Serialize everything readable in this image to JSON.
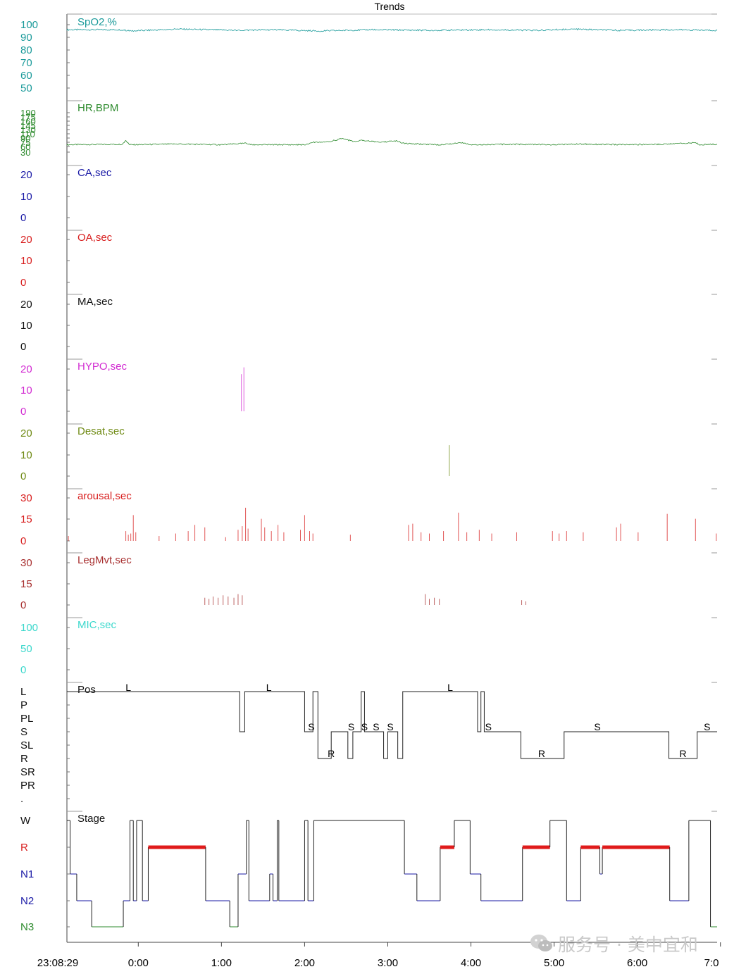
{
  "window": {
    "title": "Trends"
  },
  "watermark": {
    "text": "服务号 · 美中宜和"
  },
  "chart_data": {
    "type": "line",
    "title": "Trends",
    "x_axis": {
      "start_label": "23:08:29",
      "ticks": [
        "0:00",
        "1:00",
        "2:00",
        "3:00",
        "4:00",
        "5:00",
        "6:00",
        "7:0"
      ],
      "start_hours": -0.858,
      "end_hours": 6.96
    },
    "panels": [
      {
        "label": "SpO2,%",
        "color": "#1a9a9a",
        "ticks": [
          "100",
          "90",
          "80",
          "70",
          "60",
          "50"
        ],
        "ylim": [
          50,
          100
        ],
        "series": [
          [
            -0.86,
            96
          ],
          [
            -0.2,
            96
          ],
          [
            -0.1,
            95
          ],
          [
            0.5,
            96.5
          ],
          [
            1.2,
            95.5
          ],
          [
            1.6,
            96
          ],
          [
            2.2,
            95
          ],
          [
            2.8,
            96
          ],
          [
            3.5,
            95.5
          ],
          [
            4.2,
            96
          ],
          [
            4.8,
            95.5
          ],
          [
            5.2,
            96.5
          ],
          [
            5.8,
            95.5
          ],
          [
            6.4,
            96
          ],
          [
            6.96,
            95.5
          ]
        ]
      },
      {
        "label": "HR,BPM",
        "color": "#2e8b2e",
        "ticks": [
          "190",
          "175",
          "160",
          "145",
          "130",
          "110",
          "90",
          "75",
          "60",
          "30"
        ],
        "ylim": [
          30,
          190
        ],
        "series": [
          [
            -0.86,
            60
          ],
          [
            -0.2,
            62
          ],
          [
            -0.15,
            75
          ],
          [
            -0.1,
            60
          ],
          [
            0.5,
            63
          ],
          [
            1.0,
            60
          ],
          [
            1.3,
            66
          ],
          [
            1.35,
            60
          ],
          [
            2.0,
            60
          ],
          [
            2.1,
            70
          ],
          [
            2.3,
            73
          ],
          [
            2.45,
            85
          ],
          [
            2.6,
            72
          ],
          [
            2.7,
            78
          ],
          [
            2.9,
            70
          ],
          [
            3.1,
            76
          ],
          [
            3.2,
            65
          ],
          [
            3.6,
            60
          ],
          [
            3.9,
            68
          ],
          [
            4.0,
            60
          ],
          [
            4.5,
            62
          ],
          [
            5.0,
            60
          ],
          [
            5.3,
            63
          ],
          [
            5.8,
            60
          ],
          [
            6.3,
            62
          ],
          [
            6.7,
            68
          ],
          [
            6.75,
            60
          ],
          [
            6.96,
            62
          ]
        ]
      },
      {
        "label": "CA,sec",
        "color": "#1a1aa6",
        "ticks": [
          "20",
          "10",
          "0"
        ],
        "ylim": [
          0,
          25
        ],
        "events": []
      },
      {
        "label": "OA,sec",
        "color": "#d81e1e",
        "ticks": [
          "20",
          "10",
          "0"
        ],
        "ylim": [
          0,
          25
        ],
        "events": []
      },
      {
        "label": "MA,sec",
        "color": "#111111",
        "ticks": [
          "20",
          "10",
          "0"
        ],
        "ylim": [
          0,
          25
        ],
        "events": []
      },
      {
        "label": "HYPO,sec",
        "color": "#d22bd2",
        "ticks": [
          "20",
          "10",
          "0"
        ],
        "ylim": [
          0,
          25
        ],
        "events": [
          [
            1.24,
            22
          ],
          [
            1.27,
            26
          ]
        ]
      },
      {
        "label": "Desat,sec",
        "color": "#6f8a14",
        "ticks": [
          "20",
          "10",
          "0"
        ],
        "ylim": [
          0,
          25
        ],
        "events": [
          [
            3.74,
            18
          ]
        ]
      },
      {
        "label": "arousal,sec",
        "color": "#d81e1e",
        "ticks": [
          "30",
          "15",
          "0"
        ],
        "ylim": [
          0,
          35
        ],
        "events": [
          [
            -0.84,
            4
          ],
          [
            -0.15,
            8
          ],
          [
            -0.12,
            5
          ],
          [
            -0.09,
            6
          ],
          [
            -0.06,
            21
          ],
          [
            -0.03,
            7
          ],
          [
            0.25,
            4
          ],
          [
            0.45,
            6
          ],
          [
            0.6,
            8
          ],
          [
            0.68,
            13
          ],
          [
            0.8,
            11
          ],
          [
            1.05,
            3
          ],
          [
            1.2,
            9
          ],
          [
            1.25,
            12
          ],
          [
            1.29,
            27
          ],
          [
            1.32,
            10
          ],
          [
            1.48,
            18
          ],
          [
            1.52,
            11
          ],
          [
            1.6,
            8
          ],
          [
            1.68,
            13
          ],
          [
            1.75,
            7
          ],
          [
            1.95,
            9
          ],
          [
            2.0,
            21
          ],
          [
            2.06,
            8
          ],
          [
            2.1,
            6
          ],
          [
            2.55,
            5
          ],
          [
            3.25,
            13
          ],
          [
            3.3,
            14
          ],
          [
            3.4,
            7
          ],
          [
            3.5,
            6
          ],
          [
            3.67,
            8
          ],
          [
            3.85,
            23
          ],
          [
            3.95,
            7
          ],
          [
            4.1,
            9
          ],
          [
            4.25,
            6
          ],
          [
            4.55,
            7
          ],
          [
            4.98,
            8
          ],
          [
            5.06,
            6
          ],
          [
            5.15,
            8
          ],
          [
            5.35,
            7
          ],
          [
            5.75,
            11
          ],
          [
            5.8,
            14
          ],
          [
            6.01,
            7
          ],
          [
            6.36,
            22
          ],
          [
            6.7,
            18
          ],
          [
            6.95,
            6
          ]
        ]
      },
      {
        "label": "LegMvt,sec",
        "color": "#a83030",
        "ticks": [
          "30",
          "15",
          "0"
        ],
        "ylim": [
          0,
          35
        ],
        "events": [
          [
            0.8,
            6
          ],
          [
            0.85,
            5
          ],
          [
            0.9,
            7
          ],
          [
            0.96,
            6
          ],
          [
            1.02,
            8
          ],
          [
            1.08,
            7
          ],
          [
            1.15,
            6
          ],
          [
            1.2,
            9
          ],
          [
            1.25,
            8
          ],
          [
            3.45,
            9
          ],
          [
            3.5,
            5
          ],
          [
            3.56,
            6
          ],
          [
            3.62,
            5
          ],
          [
            4.61,
            4
          ],
          [
            4.66,
            3
          ]
        ]
      },
      {
        "label": "MIC,sec",
        "color": "#3cd8cc",
        "ticks": [
          "100",
          "50",
          "0"
        ],
        "ylim": [
          0,
          120
        ],
        "events": []
      },
      {
        "label": "Pos",
        "color": "#111111",
        "type": "step",
        "ticks": [
          "L",
          "P",
          "PL",
          "S",
          "SL",
          "R",
          "SR",
          "PR",
          "."
        ],
        "text_labels": [
          [
            -0.12,
            "L"
          ],
          [
            1.57,
            "L"
          ],
          [
            3.43,
            "S"
          ],
          [
            3.75,
            "L"
          ]
        ],
        "segments": [
          [
            -0.86,
            "L"
          ],
          [
            1.22,
            "S"
          ],
          [
            1.28,
            "L"
          ],
          [
            2.0,
            "S"
          ],
          [
            2.1,
            "L"
          ],
          [
            2.16,
            "R"
          ],
          [
            2.32,
            "S"
          ],
          [
            2.52,
            "R"
          ],
          [
            2.58,
            "S"
          ],
          [
            2.68,
            "L"
          ],
          [
            2.72,
            "S"
          ],
          [
            2.95,
            "R"
          ],
          [
            3.0,
            "S"
          ],
          [
            3.12,
            "R"
          ],
          [
            3.18,
            "L"
          ],
          [
            4.08,
            "S"
          ],
          [
            4.12,
            "L"
          ],
          [
            4.16,
            "S"
          ],
          [
            4.6,
            "R"
          ],
          [
            5.12,
            "S"
          ],
          [
            6.38,
            "R"
          ],
          [
            6.72,
            "S"
          ],
          [
            6.96,
            "S"
          ]
        ],
        "letters": [
          [
            "S",
            2.08
          ],
          [
            "R",
            2.32
          ],
          [
            "S",
            2.56
          ],
          [
            "S",
            2.72
          ],
          [
            "S",
            2.86
          ],
          [
            "S",
            3.03
          ],
          [
            "S",
            4.21
          ],
          [
            "R",
            4.85
          ],
          [
            "S",
            5.52
          ],
          [
            "R",
            6.55
          ],
          [
            "S",
            6.84
          ]
        ]
      },
      {
        "label": "Stage",
        "color": "#111111",
        "type": "hypnogram",
        "ticks": [
          "W",
          "R",
          "N1",
          "N2",
          "N3"
        ],
        "tick_colors": [
          "#111111",
          "#d81e1e",
          "#1a1aa6",
          "#1a1aa6",
          "#2e8b2e"
        ],
        "segments": [
          [
            -0.86,
            "W"
          ],
          [
            -0.82,
            "N1"
          ],
          [
            -0.74,
            "N2"
          ],
          [
            -0.56,
            "N3"
          ],
          [
            -0.18,
            "N2"
          ],
          [
            -0.1,
            "W"
          ],
          [
            -0.06,
            "N2"
          ],
          [
            -0.02,
            "W"
          ],
          [
            0.05,
            "N2"
          ],
          [
            0.12,
            "R"
          ],
          [
            0.81,
            "N2"
          ],
          [
            1.1,
            "N3"
          ],
          [
            1.2,
            "N1"
          ],
          [
            1.3,
            "W"
          ],
          [
            1.33,
            "N2"
          ],
          [
            1.58,
            "N1"
          ],
          [
            1.62,
            "N2"
          ],
          [
            1.67,
            "W"
          ],
          [
            1.69,
            "N2"
          ],
          [
            2.0,
            "W"
          ],
          [
            2.04,
            "N2"
          ],
          [
            2.11,
            "W"
          ],
          [
            3.2,
            "N1"
          ],
          [
            3.35,
            "N2"
          ],
          [
            3.63,
            "R"
          ],
          [
            3.8,
            "W"
          ],
          [
            3.99,
            "N1"
          ],
          [
            4.12,
            "N2"
          ],
          [
            4.62,
            "R"
          ],
          [
            4.95,
            "W"
          ],
          [
            5.15,
            "N2"
          ],
          [
            5.32,
            "R"
          ],
          [
            5.55,
            "N1"
          ],
          [
            5.58,
            "R"
          ],
          [
            6.39,
            "N2"
          ],
          [
            6.62,
            "W"
          ],
          [
            6.88,
            "N3"
          ],
          [
            6.96,
            "N3"
          ]
        ]
      }
    ]
  }
}
